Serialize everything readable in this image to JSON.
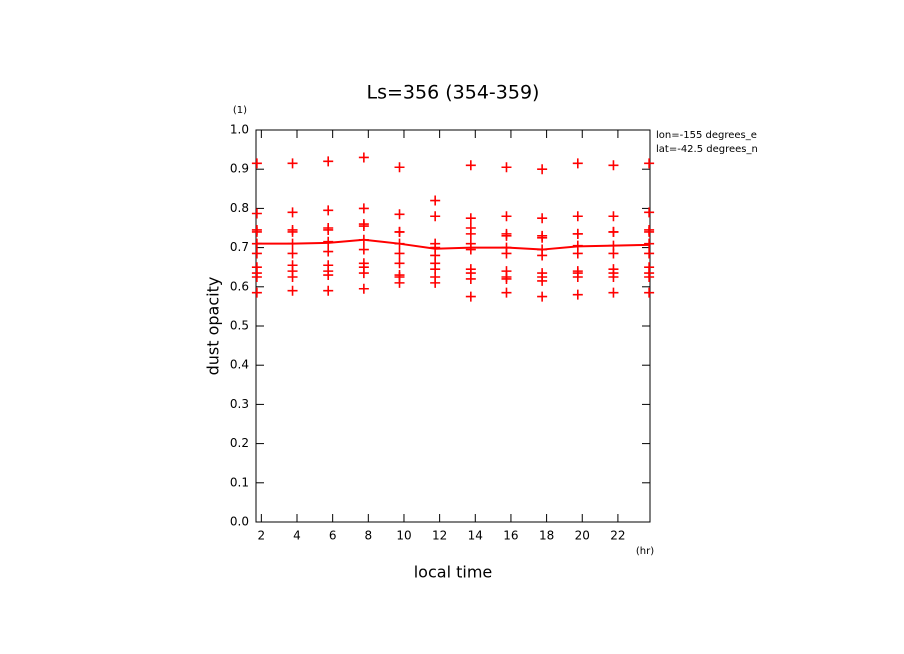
{
  "chart_data": {
    "type": "scatter",
    "title": "Ls=356 (354-359)",
    "x_label": "local time",
    "y_label": "dust opacity",
    "x_unit": "(hr)",
    "y_unit": "(1)",
    "annotations": [
      "lon=-155 degrees_e",
      "lat=-42.5 degrees_n"
    ],
    "color": "#ff0000",
    "xlim": [
      1.7,
      23.8
    ],
    "ylim": [
      0,
      1
    ],
    "xticks": [
      2,
      4,
      6,
      8,
      10,
      12,
      14,
      16,
      18,
      20,
      22
    ],
    "yticks": [
      {
        "value": 0,
        "label": "0.0"
      },
      0.1,
      0.2,
      0.3,
      0.4,
      0.5,
      0.6,
      0.7,
      0.8,
      0.9,
      {
        "value": 1,
        "label": "1.0"
      }
    ],
    "columns": [
      {
        "x": 1.75,
        "values": [
          0.915,
          0.787,
          0.745,
          0.74,
          0.71,
          0.685,
          0.65,
          0.635,
          0.625,
          0.585
        ]
      },
      {
        "x": 3.75,
        "values": [
          0.915,
          0.79,
          0.745,
          0.74,
          0.71,
          0.685,
          0.655,
          0.64,
          0.625,
          0.59
        ]
      },
      {
        "x": 5.75,
        "values": [
          0.92,
          0.795,
          0.75,
          0.745,
          0.715,
          0.69,
          0.655,
          0.64,
          0.63,
          0.59
        ]
      },
      {
        "x": 7.75,
        "values": [
          0.93,
          0.8,
          0.76,
          0.755,
          0.72,
          0.695,
          0.66,
          0.65,
          0.635,
          0.595
        ]
      },
      {
        "x": 9.75,
        "values": [
          0.905,
          0.785,
          0.74,
          0.74,
          0.71,
          0.685,
          0.66,
          0.63,
          0.625,
          0.61
        ]
      },
      {
        "x": 11.75,
        "values": [
          0.82,
          0.78,
          0.71,
          0.7,
          0.68,
          0.66,
          0.645,
          0.625,
          0.61
        ]
      },
      {
        "x": 13.75,
        "values": [
          0.91,
          0.775,
          0.75,
          0.735,
          0.71,
          0.695,
          0.645,
          0.635,
          0.62,
          0.575
        ]
      },
      {
        "x": 15.75,
        "values": [
          0.905,
          0.78,
          0.735,
          0.73,
          0.7,
          0.685,
          0.64,
          0.625,
          0.62,
          0.585
        ]
      },
      {
        "x": 17.75,
        "values": [
          0.9,
          0.775,
          0.73,
          0.725,
          0.695,
          0.68,
          0.635,
          0.625,
          0.615,
          0.575
        ]
      },
      {
        "x": 19.75,
        "values": [
          0.915,
          0.78,
          0.735,
          0.735,
          0.705,
          0.685,
          0.64,
          0.635,
          0.625,
          0.58
        ]
      },
      {
        "x": 21.75,
        "values": [
          0.91,
          0.78,
          0.74,
          0.74,
          0.705,
          0.685,
          0.645,
          0.635,
          0.625,
          0.585
        ]
      },
      {
        "x": 23.75,
        "values": [
          0.915,
          0.79,
          0.745,
          0.74,
          0.71,
          0.685,
          0.65,
          0.635,
          0.625,
          0.585
        ]
      }
    ],
    "line": {
      "x": [
        1.75,
        3.75,
        5.75,
        7.75,
        9.75,
        11.75,
        13.75,
        15.75,
        17.75,
        19.75,
        21.75,
        23.75
      ],
      "values": [
        0.71,
        0.71,
        0.712,
        0.72,
        0.71,
        0.697,
        0.7,
        0.7,
        0.695,
        0.703,
        0.705,
        0.707
      ]
    }
  }
}
